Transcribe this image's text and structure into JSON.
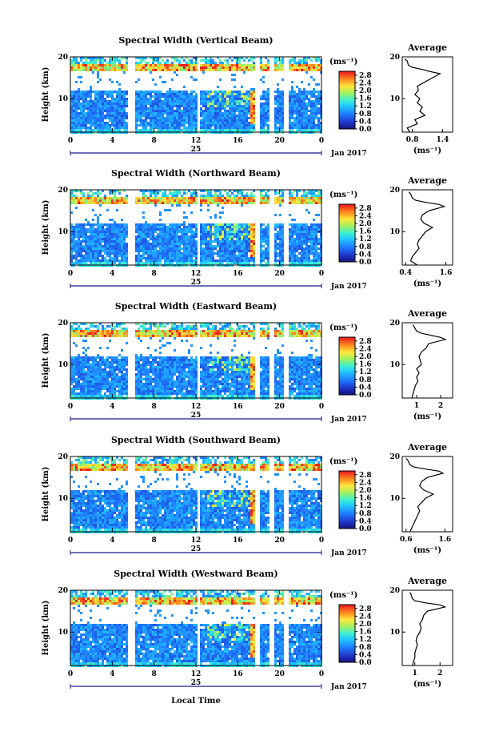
{
  "chart_data": {
    "type": "heatmap",
    "panels": [
      {
        "title": "Spectral Width (Vertical Beam)",
        "avg_xticks": [
          "0.8",
          "1.4"
        ],
        "avg_xlim": [
          0.6,
          1.6
        ],
        "avg_profile": [
          [
            2,
            0.75
          ],
          [
            3,
            0.7
          ],
          [
            4,
            0.9
          ],
          [
            5,
            0.85
          ],
          [
            6,
            1.05
          ],
          [
            7,
            0.95
          ],
          [
            8,
            1.0
          ],
          [
            9,
            0.9
          ],
          [
            10,
            0.95
          ],
          [
            11,
            0.85
          ],
          [
            12,
            0.92
          ],
          [
            13,
            0.9
          ],
          [
            14,
            1.05
          ],
          [
            15,
            1.2
          ],
          [
            16,
            1.35
          ],
          [
            16.5,
            1.15
          ],
          [
            17,
            1.0
          ],
          [
            17.5,
            0.8
          ],
          [
            18,
            0.72
          ],
          [
            19,
            0.7
          ],
          [
            19.5,
            0.65
          ]
        ]
      },
      {
        "title": "Spectral Width (Northward Beam)",
        "avg_xticks": [
          "0.4",
          "1.6"
        ],
        "avg_xlim": [
          0.3,
          1.8
        ],
        "avg_profile": [
          [
            2,
            0.75
          ],
          [
            3,
            0.55
          ],
          [
            4,
            0.6
          ],
          [
            5,
            0.7
          ],
          [
            6,
            0.8
          ],
          [
            7,
            0.75
          ],
          [
            8,
            0.8
          ],
          [
            9,
            0.9
          ],
          [
            10,
            1.0
          ],
          [
            11,
            1.2
          ],
          [
            12,
            0.95
          ],
          [
            13,
            0.85
          ],
          [
            14,
            0.9
          ],
          [
            15,
            1.1
          ],
          [
            16,
            1.55
          ],
          [
            16.5,
            1.4
          ],
          [
            17,
            1.0
          ],
          [
            17.5,
            0.7
          ],
          [
            18,
            0.6
          ],
          [
            19,
            0.55
          ],
          [
            19.5,
            0.5
          ]
        ]
      },
      {
        "title": "Spectral Width (Eastward Beam)",
        "avg_xticks": [
          "1",
          "2"
        ],
        "avg_xlim": [
          0.4,
          2.5
        ],
        "avg_profile": [
          [
            2,
            0.8
          ],
          [
            3,
            0.85
          ],
          [
            4,
            0.9
          ],
          [
            5,
            0.95
          ],
          [
            6,
            1.05
          ],
          [
            7,
            1.0
          ],
          [
            8,
            1.1
          ],
          [
            9,
            1.0
          ],
          [
            10,
            1.2
          ],
          [
            11,
            1.15
          ],
          [
            12,
            1.1
          ],
          [
            13,
            1.2
          ],
          [
            14,
            1.4
          ],
          [
            15,
            1.5
          ],
          [
            16,
            2.2
          ],
          [
            16.5,
            2.0
          ],
          [
            17,
            1.6
          ],
          [
            17.5,
            1.2
          ],
          [
            18,
            1.0
          ],
          [
            19,
            0.9
          ],
          [
            19.5,
            0.85
          ]
        ]
      },
      {
        "title": "Spectral Width (Southward Beam)",
        "avg_xticks": [
          "0.6",
          "1.6"
        ],
        "avg_xlim": [
          0.5,
          1.8
        ],
        "avg_profile": [
          [
            2,
            0.7
          ],
          [
            3,
            0.75
          ],
          [
            4,
            0.8
          ],
          [
            5,
            0.85
          ],
          [
            6,
            0.9
          ],
          [
            7,
            0.95
          ],
          [
            8,
            0.9
          ],
          [
            9,
            1.0
          ],
          [
            10,
            1.1
          ],
          [
            11,
            1.3
          ],
          [
            12,
            1.05
          ],
          [
            13,
            0.95
          ],
          [
            14,
            1.0
          ],
          [
            15,
            1.15
          ],
          [
            16,
            1.55
          ],
          [
            16.5,
            1.45
          ],
          [
            17,
            1.1
          ],
          [
            17.5,
            0.8
          ],
          [
            18,
            0.7
          ],
          [
            19,
            0.65
          ],
          [
            19.5,
            0.6
          ]
        ]
      },
      {
        "title": "Spectral Width (Westward Beam)",
        "avg_xticks": [
          "1",
          "2"
        ],
        "avg_xlim": [
          0.5,
          2.5
        ],
        "avg_profile": [
          [
            2,
            0.9
          ],
          [
            3,
            0.95
          ],
          [
            4,
            1.0
          ],
          [
            5,
            1.0
          ],
          [
            6,
            1.05
          ],
          [
            7,
            1.1
          ],
          [
            8,
            1.05
          ],
          [
            9,
            1.1
          ],
          [
            10,
            1.2
          ],
          [
            11,
            1.25
          ],
          [
            12,
            1.2
          ],
          [
            13,
            1.3
          ],
          [
            14,
            1.35
          ],
          [
            15,
            1.5
          ],
          [
            16,
            2.2
          ],
          [
            16.5,
            2.0
          ],
          [
            17,
            1.4
          ],
          [
            17.5,
            1.0
          ],
          [
            18,
            0.9
          ],
          [
            19,
            0.85
          ],
          [
            19.5,
            0.8
          ]
        ]
      }
    ],
    "yticks": [
      "20",
      "10"
    ],
    "ylim": [
      2,
      20
    ],
    "xticks": [
      "0",
      "4",
      "8",
      "12",
      "16",
      "20",
      "0"
    ],
    "xlim": [
      0,
      24
    ],
    "day_label": "25",
    "month_label": "Jan 2017",
    "ylabel": "Height (km)",
    "xlabel": "Local Time",
    "colorbar_unit": "(ms⁻¹)",
    "colorbar_ticks": [
      "2.8",
      "2.4",
      "2.0",
      "1.6",
      "1.2",
      "0.8",
      "0.4",
      "0.0"
    ],
    "colorbar_range": [
      0.0,
      3.0
    ],
    "avg_title": "Average",
    "avg_yticks": [
      "20",
      "10"
    ],
    "avg_xlabel": "(ms⁻¹)",
    "data_gaps_hours": [
      [
        5.5,
        6.0
      ],
      [
        12.0,
        12.2
      ],
      [
        17.6,
        18.0
      ],
      [
        19.0,
        19.4
      ],
      [
        20.3,
        20.7
      ]
    ],
    "grid": false
  }
}
